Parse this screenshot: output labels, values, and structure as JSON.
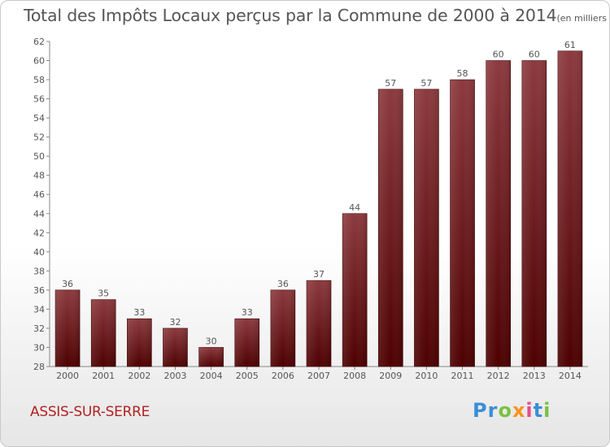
{
  "header": {
    "title": "Total des Impôts Locaux perçus par la Commune de 2000 à 2014",
    "unit": "(en milliers d'€)"
  },
  "footer": {
    "commune": "ASSIS-SUR-SERRE",
    "brand": "Proxiti"
  },
  "colors": {
    "bar_top": "#8c3a3e",
    "bar_bottom": "#4d0000",
    "text": "#555555",
    "commune": "#b22222"
  },
  "chart_data": {
    "type": "bar",
    "title": "Total des Impôts Locaux perçus par la Commune de 2000 à 2014",
    "ylabel": "en milliers d'€",
    "xlabel": "",
    "categories": [
      "2000",
      "2001",
      "2002",
      "2003",
      "2004",
      "2005",
      "2006",
      "2007",
      "2008",
      "2009",
      "2010",
      "2011",
      "2012",
      "2013",
      "2014"
    ],
    "values": [
      36,
      35,
      33,
      32,
      30,
      33,
      36,
      37,
      44,
      57,
      57,
      58,
      60,
      60,
      61
    ],
    "ylim": [
      28,
      62
    ],
    "yticks": [
      28,
      30,
      32,
      34,
      36,
      38,
      40,
      42,
      44,
      46,
      48,
      50,
      52,
      54,
      56,
      58,
      60,
      62
    ],
    "grid": false
  }
}
